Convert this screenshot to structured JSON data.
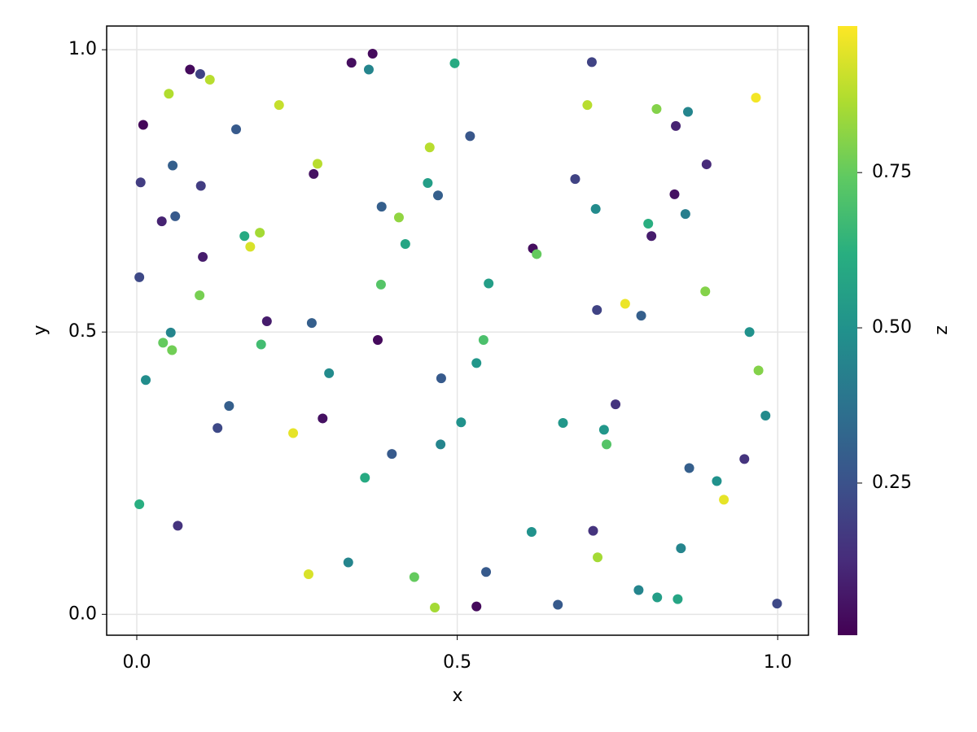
{
  "chart_data": {
    "type": "scatter",
    "xlabel": "x",
    "ylabel": "y",
    "zlabel": "z",
    "colormap": "viridis",
    "grid": true,
    "x": [
      0.083,
      0.099,
      0.114,
      0.05,
      0.01,
      0.222,
      0.155,
      0.056,
      0.006,
      0.1,
      0.282,
      0.276,
      0.039,
      0.06,
      0.168,
      0.192,
      0.177,
      0.103,
      0.004,
      0.098,
      0.203,
      0.053,
      0.041,
      0.055,
      0.194,
      0.014,
      0.144,
      0.126,
      0.004,
      0.064,
      0.335,
      0.368,
      0.362,
      0.496,
      0.457,
      0.52,
      0.454,
      0.47,
      0.382,
      0.409,
      0.419,
      0.381,
      0.549,
      0.273,
      0.376,
      0.541,
      0.53,
      0.3,
      0.475,
      0.29,
      0.506,
      0.244,
      0.474,
      0.398,
      0.356,
      0.33,
      0.268,
      0.433,
      0.465,
      0.53,
      0.545,
      0.71,
      0.703,
      0.811,
      0.86,
      0.841,
      0.889,
      0.684,
      0.839,
      0.716,
      0.856,
      0.798,
      0.803,
      0.618,
      0.624,
      0.887,
      0.762,
      0.718,
      0.787,
      0.956,
      0.97,
      0.747,
      0.981,
      0.665,
      0.729,
      0.733,
      0.948,
      0.862,
      0.905,
      0.916,
      0.616,
      0.712,
      0.849,
      0.719,
      0.783,
      0.812,
      0.844,
      0.657,
      0.999,
      0.966
    ],
    "y": [
      0.965,
      0.957,
      0.947,
      0.922,
      0.867,
      0.902,
      0.859,
      0.795,
      0.765,
      0.759,
      0.798,
      0.78,
      0.696,
      0.705,
      0.67,
      0.676,
      0.651,
      0.633,
      0.597,
      0.565,
      0.519,
      0.499,
      0.481,
      0.468,
      0.478,
      0.415,
      0.369,
      0.33,
      0.195,
      0.157,
      0.977,
      0.993,
      0.965,
      0.976,
      0.827,
      0.847,
      0.764,
      0.742,
      0.722,
      0.703,
      0.656,
      0.584,
      0.586,
      0.516,
      0.486,
      0.486,
      0.445,
      0.427,
      0.418,
      0.347,
      0.34,
      0.321,
      0.301,
      0.284,
      0.242,
      0.092,
      0.071,
      0.066,
      0.012,
      0.014,
      0.075,
      0.978,
      0.902,
      0.895,
      0.89,
      0.865,
      0.797,
      0.771,
      0.744,
      0.718,
      0.709,
      0.692,
      0.67,
      0.648,
      0.638,
      0.572,
      0.55,
      0.539,
      0.529,
      0.5,
      0.432,
      0.372,
      0.352,
      0.339,
      0.327,
      0.301,
      0.275,
      0.259,
      0.236,
      0.203,
      0.146,
      0.148,
      0.117,
      0.101,
      0.043,
      0.03,
      0.027,
      0.017,
      0.019,
      0.915
    ],
    "z": [
      0.03,
      0.2,
      0.88,
      0.87,
      0.02,
      0.9,
      0.28,
      0.3,
      0.18,
      0.18,
      0.88,
      0.05,
      0.1,
      0.28,
      0.6,
      0.85,
      0.93,
      0.08,
      0.22,
      0.78,
      0.08,
      0.45,
      0.75,
      0.77,
      0.68,
      0.48,
      0.3,
      0.22,
      0.62,
      0.15,
      0.04,
      0.03,
      0.45,
      0.6,
      0.88,
      0.27,
      0.55,
      0.3,
      0.3,
      0.82,
      0.58,
      0.72,
      0.55,
      0.3,
      0.03,
      0.7,
      0.52,
      0.47,
      0.28,
      0.05,
      0.5,
      0.95,
      0.45,
      0.28,
      0.6,
      0.45,
      0.93,
      0.75,
      0.85,
      0.03,
      0.28,
      0.2,
      0.88,
      0.8,
      0.45,
      0.1,
      0.12,
      0.2,
      0.05,
      0.47,
      0.42,
      0.62,
      0.08,
      0.04,
      0.75,
      0.8,
      0.96,
      0.2,
      0.3,
      0.5,
      0.8,
      0.15,
      0.47,
      0.52,
      0.52,
      0.72,
      0.15,
      0.3,
      0.5,
      0.95,
      0.5,
      0.15,
      0.45,
      0.85,
      0.45,
      0.55,
      0.58,
      0.28,
      0.22,
      0.97
    ],
    "xlim": [
      -0.047,
      1.048
    ],
    "ylim": [
      -0.037,
      1.042
    ],
    "zlim": [
      0.005,
      0.986
    ],
    "xticks": [
      {
        "value": 0,
        "label": "0.0"
      },
      {
        "value": 0.5,
        "label": "0.5"
      },
      {
        "value": 1,
        "label": "1.0"
      }
    ],
    "yticks": [
      {
        "value": 0,
        "label": "0.0"
      },
      {
        "value": 0.5,
        "label": "0.5"
      },
      {
        "value": 1,
        "label": "1.0"
      }
    ],
    "zticks": [
      0.25,
      {
        "value": 0.5,
        "label": "0.50"
      },
      0.75
    ]
  }
}
